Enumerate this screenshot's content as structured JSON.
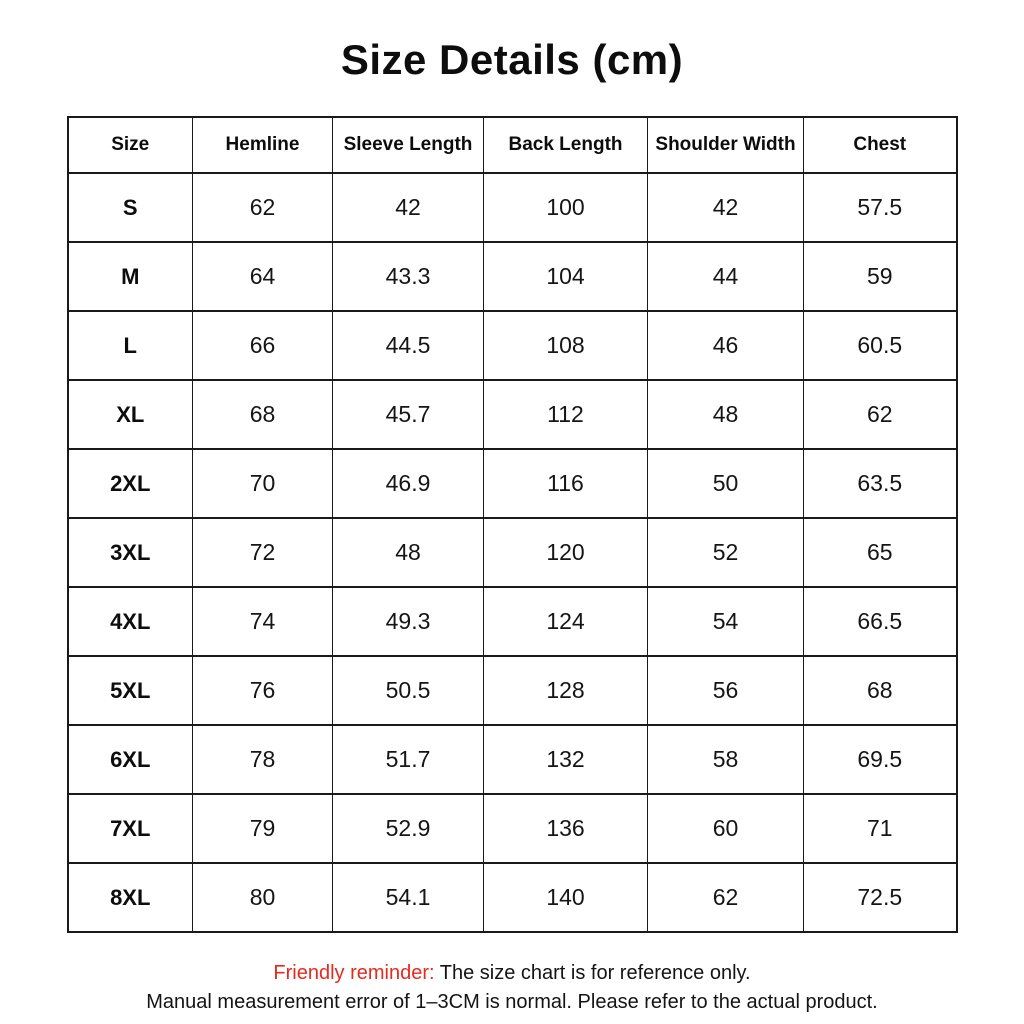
{
  "title": "Size Details (cm)",
  "table": {
    "columns": [
      "Size",
      "Hemline",
      "Sleeve Length",
      "Back Length",
      "Shoulder Width",
      "Chest"
    ],
    "rows": [
      {
        "size": "S",
        "values": [
          "62",
          "42",
          "100",
          "42",
          "57.5"
        ]
      },
      {
        "size": "M",
        "values": [
          "64",
          "43.3",
          "104",
          "44",
          "59"
        ]
      },
      {
        "size": "L",
        "values": [
          "66",
          "44.5",
          "108",
          "46",
          "60.5"
        ]
      },
      {
        "size": "XL",
        "values": [
          "68",
          "45.7",
          "112",
          "48",
          "62"
        ]
      },
      {
        "size": "2XL",
        "values": [
          "70",
          "46.9",
          "116",
          "50",
          "63.5"
        ]
      },
      {
        "size": "3XL",
        "values": [
          "72",
          "48",
          "120",
          "52",
          "65"
        ]
      },
      {
        "size": "4XL",
        "values": [
          "74",
          "49.3",
          "124",
          "54",
          "66.5"
        ]
      },
      {
        "size": "5XL",
        "values": [
          "76",
          "50.5",
          "128",
          "56",
          "68"
        ]
      },
      {
        "size": "6XL",
        "values": [
          "78",
          "51.7",
          "132",
          "58",
          "69.5"
        ]
      },
      {
        "size": "7XL",
        "values": [
          "79",
          "52.9",
          "136",
          "60",
          "71"
        ]
      },
      {
        "size": "8XL",
        "values": [
          "80",
          "54.1",
          "140",
          "62",
          "72.5"
        ]
      }
    ]
  },
  "footer": {
    "reminder_label": "Friendly reminder:",
    "line1_rest": " The size chart is for reference only.",
    "line2": "Manual measurement error of 1–3CM is normal. Please refer to the actual product.",
    "reminder_color": "#e62a1e"
  }
}
